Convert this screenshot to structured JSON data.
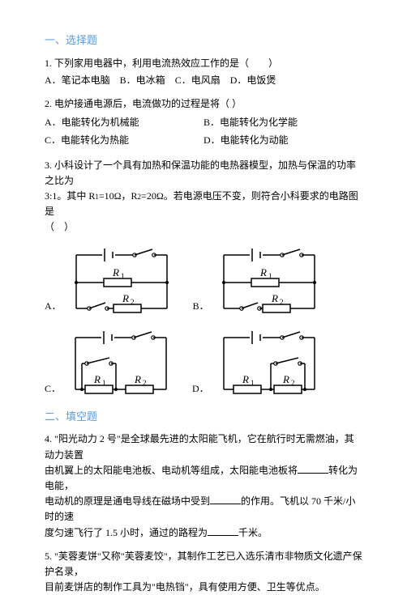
{
  "sections": {
    "mc_title": "一、选择题",
    "fill_title": "二、填空题"
  },
  "q1": {
    "text": "1. 下列家用电器中，利用电流热效应工作的是（　　）",
    "A": "A．笔记本电脑",
    "B": "B．电冰箱",
    "C": "C．电风扇",
    "D": "D．电饭煲"
  },
  "q2": {
    "text": "2. 电炉接通电源后，电流做功的过程是将（  ）",
    "A": "A．电能转化为机械能",
    "B": "B．电能转化为化学能",
    "C": "C．电能转化为热能",
    "D": "D．电能转化为动能"
  },
  "q3": {
    "line1": "3. 小科设计了一个具有加热和保温功能的电热器模型，加热与保温的功率之比为",
    "line2_pre": "3:1。其中 R",
    "line2_mid1": "=10Ω，R",
    "line2_mid2": "=20Ω。若电源电压不变，则符合小科要求的电路图是",
    "line3": "（　）",
    "sub1": "1",
    "sub2": "2",
    "labelA": "A．",
    "labelB": "B．",
    "labelC": "C．",
    "labelD": "D．"
  },
  "q4": {
    "line1": "4. \"阳光动力 2 号\"是全球最先进的太阳能飞机，它在航行时无需燃油，其动力装置",
    "line2_a": "由机翼上的太阳能电池板、电动机等组成，太阳能电池板将",
    "line2_b": "转化为电能，",
    "line3_a": "电动机的原理是通电导线在磁场中受到",
    "line3_b": "的作用。飞机以 70 千米/小时的速",
    "line4_a": "度匀速飞行了 1.5 小时，通过的路程为",
    "line4_b": "千米。"
  },
  "q5": {
    "line1": "5. \"芙蓉麦饼\"又称\"芙蓉麦饺\"，其制作工艺已入选乐清市非物质文化遗产保护名录，",
    "line2": "目前麦饼店的制作工具为\"电热铛\"，具有使用方便、卫生等优点。"
  },
  "circuit": {
    "stroke": "#000000",
    "fill": "#ffffff",
    "r1_label": "R",
    "r2_label": "R",
    "r1_sub": "1",
    "r2_sub": "2",
    "width": 140,
    "height": 92,
    "res_w": 34,
    "res_h": 10
  }
}
